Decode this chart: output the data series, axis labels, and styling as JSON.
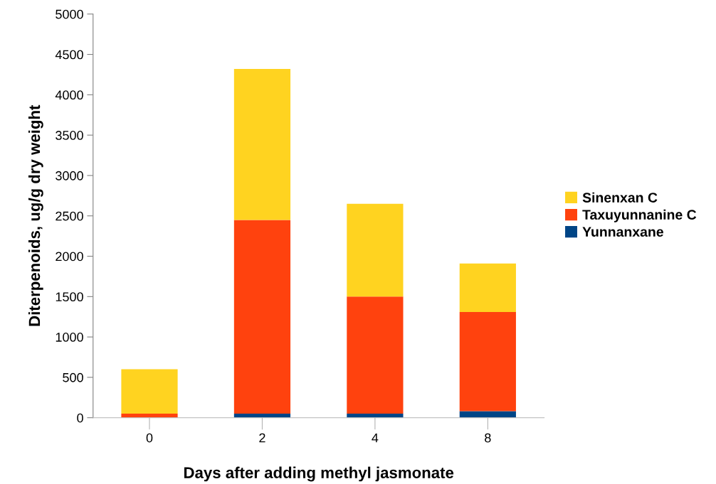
{
  "chart_data": {
    "type": "bar",
    "stacked": true,
    "xlabel": "Days after adding methyl jasmonate",
    "ylabel": "Diterpenoids, ug/g dry weight",
    "categories": [
      "0",
      "2",
      "4",
      "8"
    ],
    "series": [
      {
        "name": "Yunnanxane",
        "color": "#004586",
        "values": [
          0,
          50,
          50,
          80
        ]
      },
      {
        "name": "Taxuyunnanine C",
        "color": "#ff420e",
        "values": [
          50,
          2400,
          1450,
          1230
        ]
      },
      {
        "name": "Sinenxan C",
        "color": "#ffd320",
        "values": [
          550,
          1870,
          1150,
          600
        ]
      }
    ],
    "ylim": [
      0,
      5000
    ],
    "yticks": [
      0,
      500,
      1000,
      1500,
      2000,
      2500,
      3000,
      3500,
      4000,
      4500,
      5000
    ],
    "grid": false,
    "legend": "right"
  }
}
